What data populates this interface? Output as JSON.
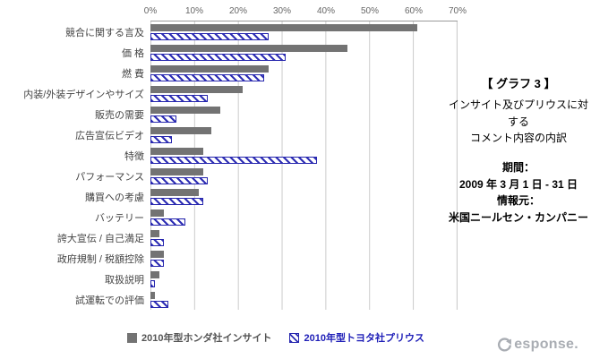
{
  "chart_data": {
    "type": "bar",
    "orientation": "horizontal",
    "title": "",
    "categories": [
      "競合に関する言及",
      "価 格",
      "燃 費",
      "内装/外装デザインやサイズ",
      "販売の需要",
      "広告宣伝ビデオ",
      "特徴",
      "パフォーマンス",
      "購買への考慮",
      "バッテリー",
      "誇大宣伝 / 自己満足",
      "政府規制 / 税額控除",
      "取扱説明",
      "試運転での評価"
    ],
    "series": [
      {
        "name": "2010年型ホンダ社インサイト",
        "style": "solid",
        "color": "#737373",
        "values": [
          61,
          45,
          27,
          21,
          16,
          14,
          12,
          12,
          11,
          3,
          2,
          3,
          2,
          1
        ]
      },
      {
        "name": "2010年型トヨタ社プリウス",
        "style": "hatched",
        "color": "#2626ae",
        "values": [
          27,
          31,
          26,
          13,
          6,
          5,
          38,
          13,
          12,
          8,
          3,
          3,
          1,
          4
        ]
      }
    ],
    "x_ticks": [
      "0%",
      "10%",
      "20%",
      "30%",
      "40%",
      "50%",
      "60%",
      "70%"
    ],
    "xlim": [
      0,
      70
    ],
    "grid": true,
    "legend_position": "bottom"
  },
  "annotation": {
    "title": "【 グラフ 3 】",
    "subtitle1": "インサイト及びプリウスに対する",
    "subtitle2": "コメント内容の内訳",
    "period_label": "期間：",
    "period_value": "2009 年 3 月 1 日 - 31 日",
    "source_label": "情報元：",
    "source_value": "米国ニールセン・カンパニー"
  },
  "logo": {
    "text": "esponse."
  }
}
